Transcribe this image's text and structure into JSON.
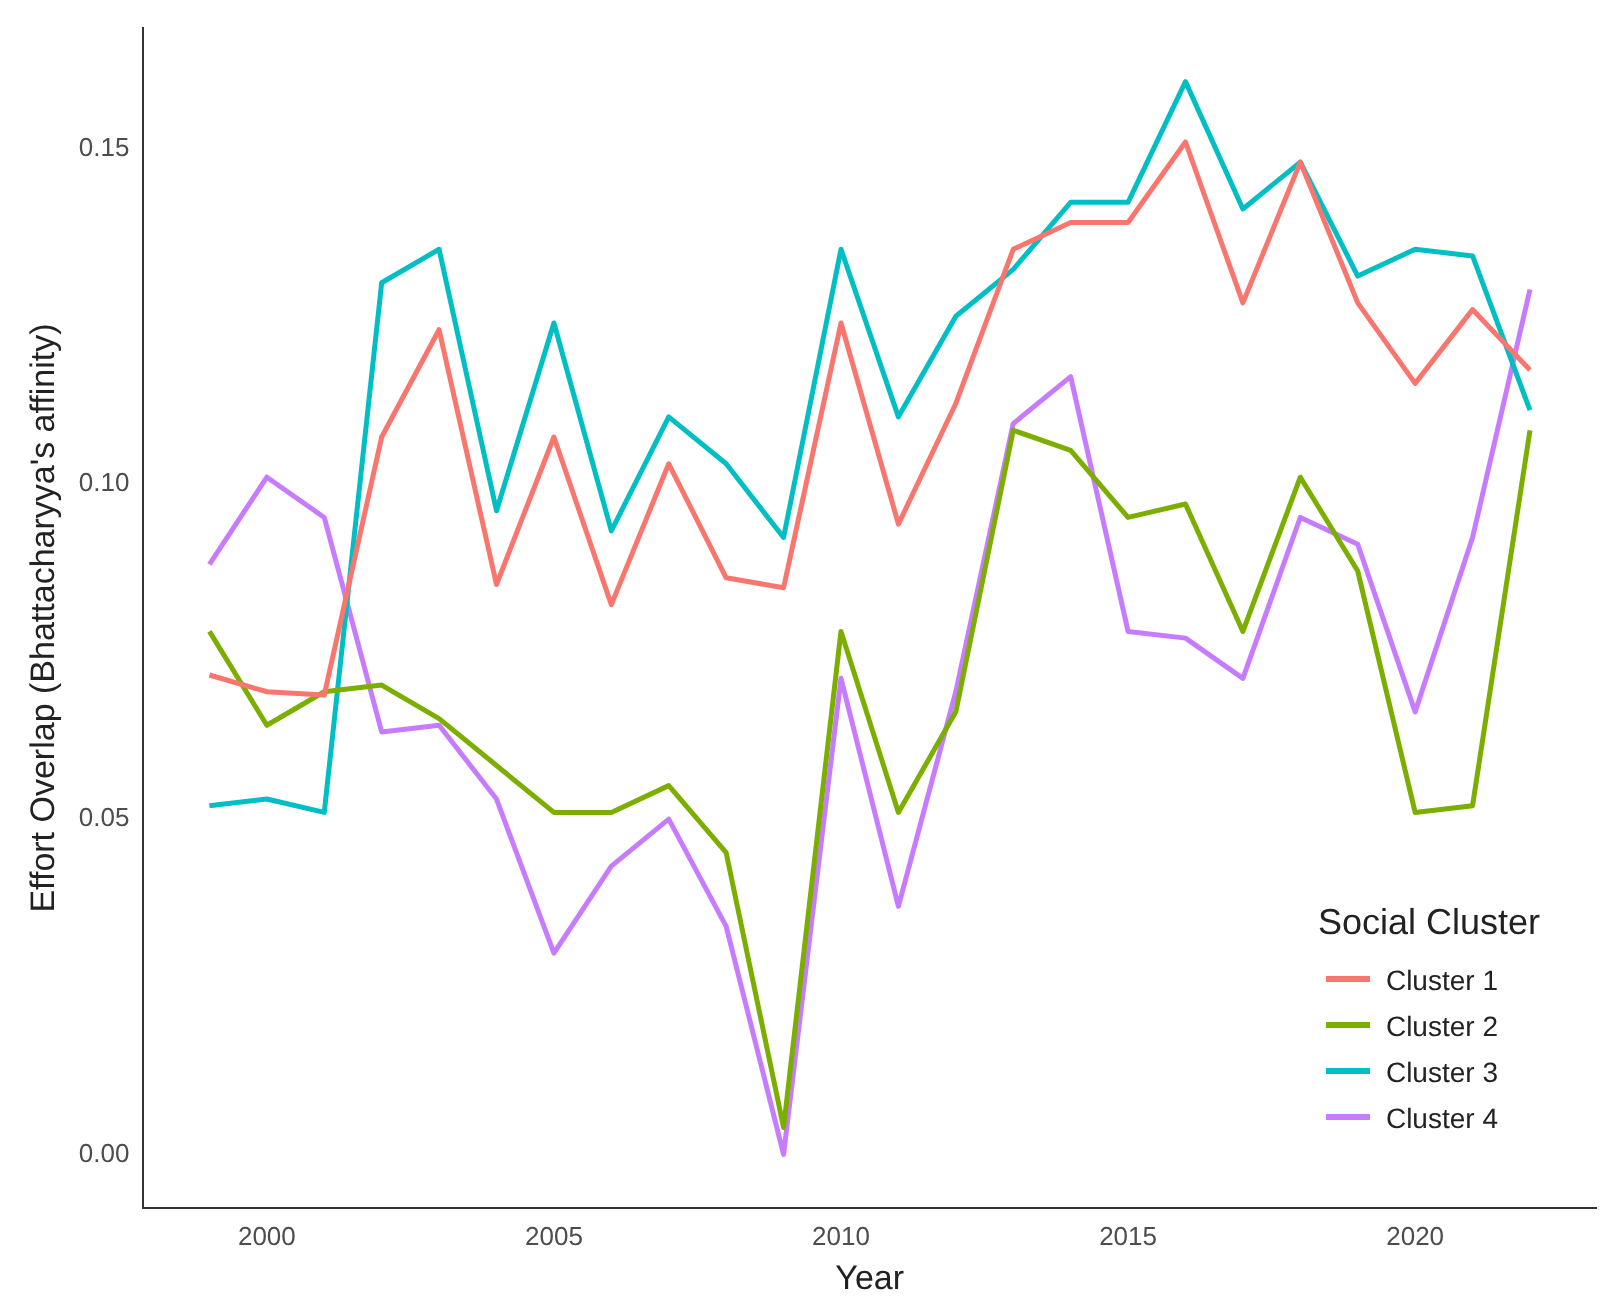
{
  "chart_data": {
    "type": "line",
    "xlabel": "Year",
    "ylabel": "Effort Overlap (Bhattacharyya's affinity)",
    "legend_title": "Social Cluster",
    "legend": "bottom right",
    "grid": false,
    "marker": "none",
    "line_style": "solid",
    "x": [
      1999,
      2000,
      2001,
      2002,
      2003,
      2004,
      2005,
      2006,
      2007,
      2008,
      2009,
      2010,
      2011,
      2012,
      2013,
      2014,
      2015,
      2016,
      2017,
      2018,
      2019,
      2020,
      2021,
      2022
    ],
    "xlim": [
      1997.85,
      2023.15
    ],
    "xticks": [
      2000,
      2005,
      2010,
      2015,
      2020
    ],
    "ylim": [
      -0.008,
      0.168
    ],
    "yticks": [
      {
        "value": 0,
        "label": "0.00"
      },
      {
        "value": 0.05,
        "label": "0.05"
      },
      {
        "value": 0.1,
        "label": "0.10"
      },
      {
        "value": 0.15,
        "label": "0.15"
      }
    ],
    "series": [
      {
        "name": "Cluster 1",
        "color": "#f8766d",
        "values": [
          0.0715,
          0.069,
          0.0685,
          0.107,
          0.123,
          0.085,
          0.107,
          0.082,
          0.103,
          0.086,
          0.0845,
          0.124,
          0.094,
          0.112,
          0.135,
          0.139,
          0.139,
          0.151,
          0.127,
          0.148,
          0.127,
          0.115,
          0.126,
          0.117
        ]
      },
      {
        "name": "Cluster 2",
        "color": "#7cae00",
        "values": [
          0.078,
          0.064,
          0.069,
          0.07,
          0.065,
          0.058,
          0.051,
          0.051,
          0.055,
          0.045,
          0.004,
          0.078,
          0.051,
          0.066,
          0.108,
          0.105,
          0.095,
          0.097,
          0.078,
          0.101,
          0.087,
          0.051,
          0.052,
          0.108
        ]
      },
      {
        "name": "Cluster 3",
        "color": "#00bfc4",
        "values": [
          0.052,
          0.053,
          0.051,
          0.13,
          0.135,
          0.096,
          0.124,
          0.093,
          0.11,
          0.103,
          0.092,
          0.135,
          0.11,
          0.125,
          0.132,
          0.142,
          0.142,
          0.16,
          0.141,
          0.148,
          0.131,
          0.135,
          0.134,
          0.111
        ]
      },
      {
        "name": "Cluster 4",
        "color": "#c77cff",
        "values": [
          0.088,
          0.101,
          0.095,
          0.063,
          0.064,
          0.053,
          0.03,
          0.043,
          0.05,
          0.034,
          0.0,
          0.071,
          0.037,
          0.069,
          0.109,
          0.116,
          0.078,
          0.077,
          0.071,
          0.095,
          0.091,
          0.066,
          0.092,
          0.129
        ]
      }
    ]
  }
}
